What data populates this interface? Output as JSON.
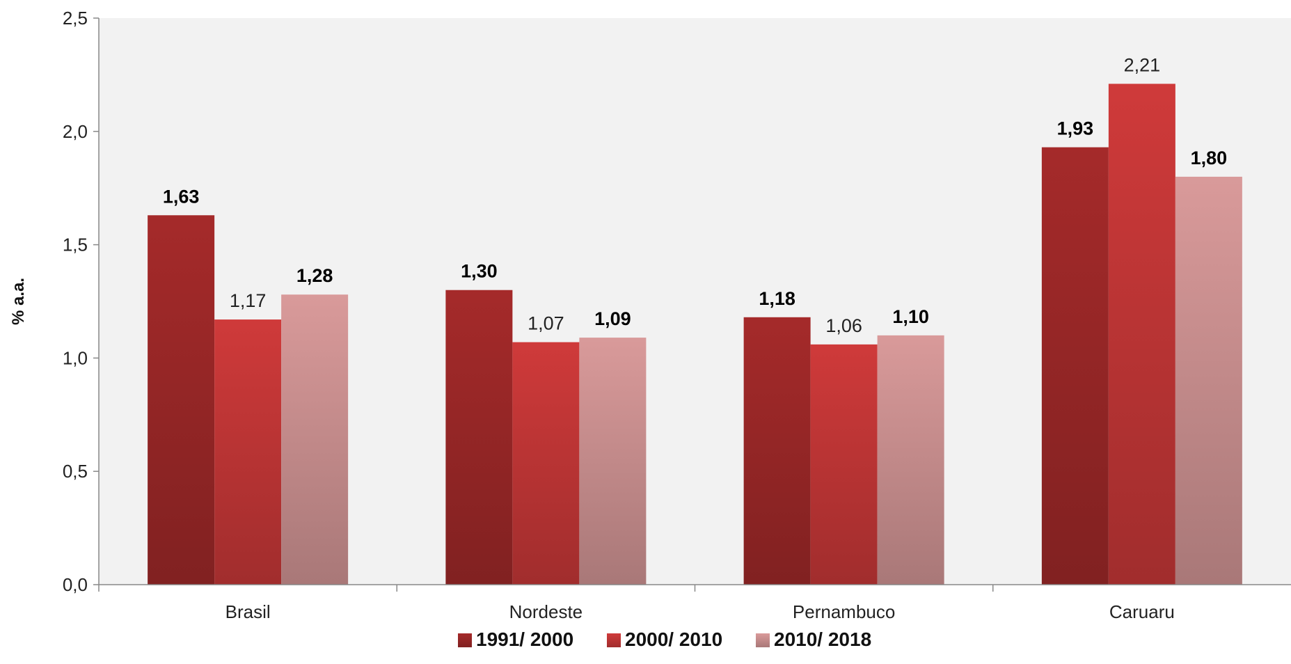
{
  "chart_data": {
    "type": "bar",
    "title": "",
    "xlabel": "",
    "ylabel": "% a.a.",
    "ylim": [
      0,
      2.5
    ],
    "yticks": [
      "0,0",
      "0,5",
      "1,0",
      "1,5",
      "2,0",
      "2,5"
    ],
    "ytick_values": [
      0,
      0.5,
      1.0,
      1.5,
      2.0,
      2.5
    ],
    "categories": [
      "Brasil",
      "Nordeste",
      "Pernambuco",
      "Caruaru"
    ],
    "series": [
      {
        "name": "1991/ 2000",
        "values": [
          1.63,
          1.3,
          1.18,
          1.93
        ],
        "labels": [
          "1,63",
          "1,30",
          "1,18",
          "1,93"
        ],
        "color": "#a52a2a",
        "label_bold": true
      },
      {
        "name": "2000/ 2010",
        "values": [
          1.17,
          1.07,
          1.06,
          2.21
        ],
        "labels": [
          "1,17",
          "1,07",
          "1,06",
          "2,21"
        ],
        "color": "#cf3a3a",
        "label_bold": false
      },
      {
        "name": "2010/ 2018",
        "values": [
          1.28,
          1.09,
          1.1,
          1.8
        ],
        "labels": [
          "1,28",
          "1,09",
          "1,10",
          "1,80"
        ],
        "color": "#d99a9a",
        "label_bold": true
      }
    ],
    "grid": false,
    "legend_position": "bottom",
    "plot_background": "#f2f2f2"
  }
}
